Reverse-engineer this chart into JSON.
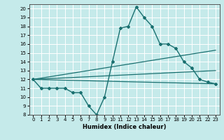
{
  "xlabel": "Humidex (Indice chaleur)",
  "ylabel": "",
  "xlim": [
    -0.5,
    23.5
  ],
  "ylim": [
    8,
    20.5
  ],
  "yticks": [
    8,
    9,
    10,
    11,
    12,
    13,
    14,
    15,
    16,
    17,
    18,
    19,
    20
  ],
  "xticks": [
    0,
    1,
    2,
    3,
    4,
    5,
    6,
    7,
    8,
    9,
    10,
    11,
    12,
    13,
    14,
    15,
    16,
    17,
    18,
    19,
    20,
    21,
    22,
    23
  ],
  "bg_color": "#c5eaea",
  "line_color": "#1a7070",
  "lines": [
    {
      "x": [
        0,
        1,
        2,
        3,
        4,
        5,
        6,
        7,
        8,
        9,
        10,
        11,
        12,
        13,
        14,
        15,
        16,
        17,
        18,
        19,
        20,
        21,
        22,
        23
      ],
      "y": [
        12,
        11,
        11,
        11,
        11,
        10.5,
        10.5,
        9.0,
        8.0,
        10.0,
        14.0,
        17.8,
        18.0,
        20.2,
        19.0,
        18.0,
        16.0,
        16.0,
        15.5,
        14.0,
        13.3,
        12.0,
        11.7,
        11.5
      ],
      "marker": "D",
      "markersize": 2.0,
      "linewidth": 1.0
    },
    {
      "x": [
        0,
        23
      ],
      "y": [
        12,
        11.5
      ],
      "marker": null,
      "linewidth": 0.9
    },
    {
      "x": [
        0,
        23
      ],
      "y": [
        12,
        15.3
      ],
      "marker": null,
      "linewidth": 0.9
    },
    {
      "x": [
        0,
        23
      ],
      "y": [
        12,
        13.0
      ],
      "marker": null,
      "linewidth": 0.9
    }
  ]
}
